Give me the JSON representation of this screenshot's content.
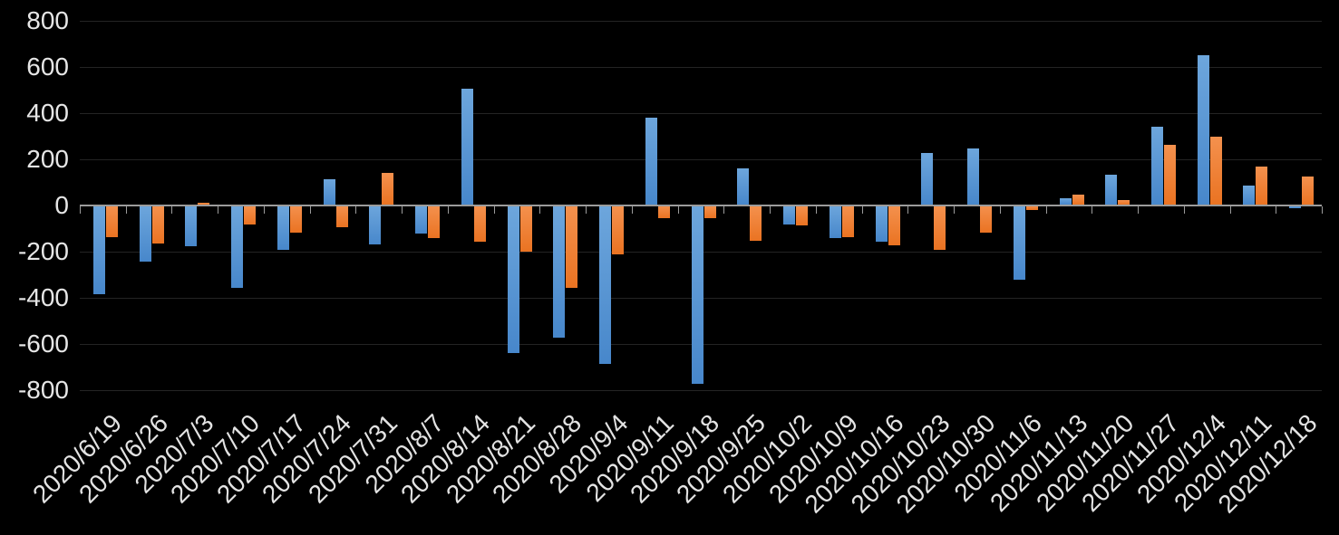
{
  "chart_data": {
    "type": "bar",
    "title": "",
    "categories": [
      "2020/6/19",
      "2020/6/26",
      "2020/7/3",
      "2020/7/10",
      "2020/7/17",
      "2020/7/24",
      "2020/7/31",
      "2020/8/7",
      "2020/8/14",
      "2020/8/21",
      "2020/8/28",
      "2020/9/4",
      "2020/9/11",
      "2020/9/18",
      "2020/9/25",
      "2020/10/2",
      "2020/10/9",
      "2020/10/16",
      "2020/10/23",
      "2020/10/30",
      "2020/11/6",
      "2020/11/13",
      "2020/11/20",
      "2020/11/27",
      "2020/12/4",
      "2020/12/11",
      "2020/12/18"
    ],
    "series": [
      {
        "id": "series-blue",
        "color": "#5B9BD5",
        "values": [
          -385,
          -245,
          -180,
          -360,
          -195,
          110,
          -170,
          -125,
          505,
          -640,
          -575,
          -690,
          380,
          -775,
          160,
          -85,
          -145,
          -160,
          225,
          245,
          -325,
          30,
          130,
          340,
          650,
          85,
          -15
        ]
      },
      {
        "id": "series-orange",
        "color": "#ED7D31",
        "values": [
          -140,
          -165,
          10,
          -85,
          -120,
          -95,
          140,
          -145,
          -160,
          -200,
          -360,
          -215,
          -55,
          -55,
          -155,
          -90,
          -140,
          -175,
          -195,
          -120,
          -20,
          45,
          20,
          260,
          295,
          165,
          125
        ]
      }
    ],
    "xlabel": "",
    "ylabel": "",
    "ylim": [
      -800,
      800
    ],
    "y_ticks": [
      800,
      600,
      400,
      200,
      0,
      -200,
      -400,
      -600,
      -800
    ],
    "grid": true,
    "legend_position": "none"
  },
  "colors": {
    "background": "#000000",
    "series_blue": "#5B9BD5",
    "series_orange": "#ED7D31",
    "axis_line": "#9B9B9B",
    "gridline": "#242424",
    "label_text": "#E6E6E6"
  }
}
